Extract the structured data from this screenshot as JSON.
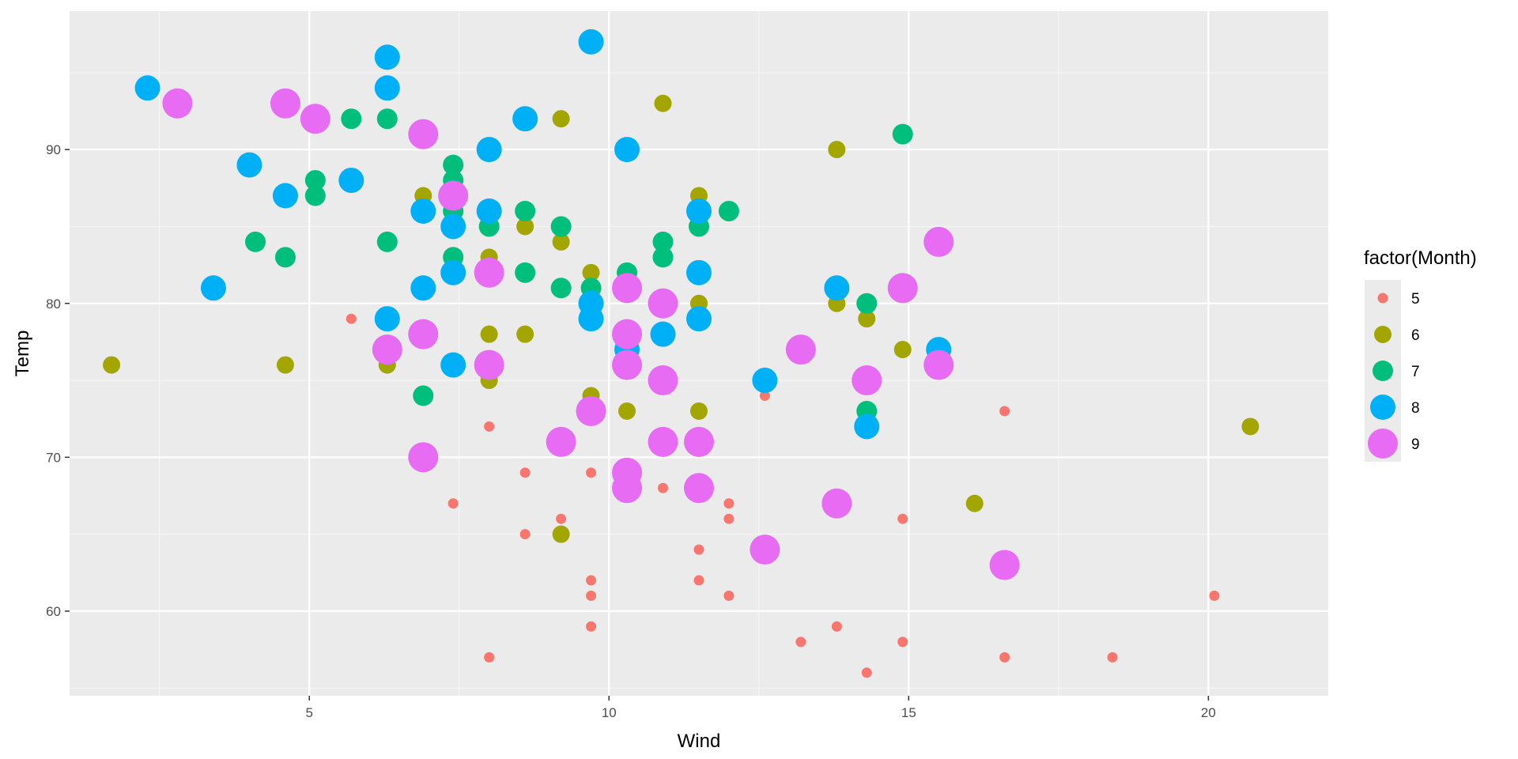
{
  "chart_data": {
    "type": "scatter",
    "xlabel": "Wind",
    "ylabel": "Temp",
    "xlim": [
      1.0,
      22.0
    ],
    "ylim": [
      54.5,
      99.0
    ],
    "x_ticks": [
      5,
      10,
      15,
      20
    ],
    "x_tick_labels": [
      "5",
      "10",
      "15",
      "20"
    ],
    "y_ticks": [
      60,
      70,
      80,
      90
    ],
    "y_tick_labels": [
      "60",
      "70",
      "80",
      "90"
    ],
    "grid": true,
    "legend": {
      "title": "factor(Month)",
      "placement": "right",
      "entries": [
        "5",
        "6",
        "7",
        "8",
        "9"
      ]
    },
    "colors": {
      "5": "#F8766D",
      "6": "#A3A500",
      "7": "#00BF7D",
      "8": "#00B0F6",
      "9": "#E76BF3"
    },
    "size_encoding": "Month",
    "series": [
      {
        "name": "5",
        "points": [
          {
            "x": 5.7,
            "y": 79
          },
          {
            "x": 8.0,
            "y": 72
          },
          {
            "x": 7.4,
            "y": 67
          },
          {
            "x": 8.6,
            "y": 69
          },
          {
            "x": 8.6,
            "y": 65
          },
          {
            "x": 9.2,
            "y": 66
          },
          {
            "x": 9.7,
            "y": 69
          },
          {
            "x": 9.7,
            "y": 62
          },
          {
            "x": 9.7,
            "y": 61
          },
          {
            "x": 9.7,
            "y": 59
          },
          {
            "x": 8.0,
            "y": 57
          },
          {
            "x": 10.9,
            "y": 68
          },
          {
            "x": 11.5,
            "y": 64
          },
          {
            "x": 11.5,
            "y": 62
          },
          {
            "x": 12.0,
            "y": 67
          },
          {
            "x": 12.0,
            "y": 66
          },
          {
            "x": 12.0,
            "y": 61
          },
          {
            "x": 12.6,
            "y": 74
          },
          {
            "x": 13.2,
            "y": 58
          },
          {
            "x": 13.8,
            "y": 59
          },
          {
            "x": 14.3,
            "y": 56
          },
          {
            "x": 14.9,
            "y": 66
          },
          {
            "x": 14.9,
            "y": 58
          },
          {
            "x": 16.6,
            "y": 73
          },
          {
            "x": 16.6,
            "y": 57
          },
          {
            "x": 18.4,
            "y": 57
          },
          {
            "x": 20.1,
            "y": 61
          }
        ]
      },
      {
        "name": "6",
        "points": [
          {
            "x": 1.7,
            "y": 76
          },
          {
            "x": 4.6,
            "y": 76
          },
          {
            "x": 6.3,
            "y": 76
          },
          {
            "x": 6.9,
            "y": 87
          },
          {
            "x": 8.0,
            "y": 83
          },
          {
            "x": 8.0,
            "y": 78
          },
          {
            "x": 8.0,
            "y": 75
          },
          {
            "x": 8.6,
            "y": 85
          },
          {
            "x": 8.6,
            "y": 78
          },
          {
            "x": 9.2,
            "y": 92
          },
          {
            "x": 9.2,
            "y": 84
          },
          {
            "x": 9.2,
            "y": 65
          },
          {
            "x": 9.7,
            "y": 82
          },
          {
            "x": 9.7,
            "y": 74
          },
          {
            "x": 10.3,
            "y": 73
          },
          {
            "x": 10.9,
            "y": 93
          },
          {
            "x": 11.5,
            "y": 87
          },
          {
            "x": 11.5,
            "y": 80
          },
          {
            "x": 11.5,
            "y": 73
          },
          {
            "x": 13.8,
            "y": 90
          },
          {
            "x": 13.8,
            "y": 80
          },
          {
            "x": 14.3,
            "y": 79
          },
          {
            "x": 14.9,
            "y": 77
          },
          {
            "x": 16.1,
            "y": 67
          },
          {
            "x": 20.7,
            "y": 72
          }
        ]
      },
      {
        "name": "7",
        "points": [
          {
            "x": 4.1,
            "y": 84
          },
          {
            "x": 4.6,
            "y": 83
          },
          {
            "x": 5.1,
            "y": 88
          },
          {
            "x": 5.1,
            "y": 87
          },
          {
            "x": 5.7,
            "y": 92
          },
          {
            "x": 6.3,
            "y": 92
          },
          {
            "x": 6.3,
            "y": 84
          },
          {
            "x": 6.9,
            "y": 74
          },
          {
            "x": 7.4,
            "y": 89
          },
          {
            "x": 7.4,
            "y": 88
          },
          {
            "x": 7.4,
            "y": 86
          },
          {
            "x": 7.4,
            "y": 83
          },
          {
            "x": 8.0,
            "y": 85
          },
          {
            "x": 8.6,
            "y": 86
          },
          {
            "x": 8.6,
            "y": 82
          },
          {
            "x": 9.2,
            "y": 85
          },
          {
            "x": 9.2,
            "y": 81
          },
          {
            "x": 9.7,
            "y": 81
          },
          {
            "x": 10.3,
            "y": 82
          },
          {
            "x": 10.9,
            "y": 84
          },
          {
            "x": 10.9,
            "y": 83
          },
          {
            "x": 11.5,
            "y": 85
          },
          {
            "x": 12.0,
            "y": 86
          },
          {
            "x": 14.3,
            "y": 80
          },
          {
            "x": 14.3,
            "y": 73
          },
          {
            "x": 14.9,
            "y": 91
          }
        ]
      },
      {
        "name": "8",
        "points": [
          {
            "x": 2.3,
            "y": 94
          },
          {
            "x": 3.4,
            "y": 81
          },
          {
            "x": 4.0,
            "y": 89
          },
          {
            "x": 4.6,
            "y": 87
          },
          {
            "x": 5.7,
            "y": 88
          },
          {
            "x": 6.3,
            "y": 96
          },
          {
            "x": 6.3,
            "y": 94
          },
          {
            "x": 6.3,
            "y": 79
          },
          {
            "x": 6.9,
            "y": 86
          },
          {
            "x": 6.9,
            "y": 81
          },
          {
            "x": 7.4,
            "y": 85
          },
          {
            "x": 7.4,
            "y": 82
          },
          {
            "x": 7.4,
            "y": 76
          },
          {
            "x": 8.0,
            "y": 90
          },
          {
            "x": 8.0,
            "y": 86
          },
          {
            "x": 8.6,
            "y": 92
          },
          {
            "x": 9.7,
            "y": 97
          },
          {
            "x": 9.7,
            "y": 80
          },
          {
            "x": 9.7,
            "y": 79
          },
          {
            "x": 10.3,
            "y": 90
          },
          {
            "x": 10.3,
            "y": 77
          },
          {
            "x": 10.9,
            "y": 78
          },
          {
            "x": 11.5,
            "y": 86
          },
          {
            "x": 11.5,
            "y": 82
          },
          {
            "x": 11.5,
            "y": 79
          },
          {
            "x": 12.6,
            "y": 75
          },
          {
            "x": 13.8,
            "y": 81
          },
          {
            "x": 14.3,
            "y": 72
          },
          {
            "x": 15.5,
            "y": 77
          }
        ]
      },
      {
        "name": "9",
        "points": [
          {
            "x": 2.8,
            "y": 93
          },
          {
            "x": 4.6,
            "y": 93
          },
          {
            "x": 5.1,
            "y": 92
          },
          {
            "x": 6.3,
            "y": 77
          },
          {
            "x": 6.9,
            "y": 91
          },
          {
            "x": 6.9,
            "y": 78
          },
          {
            "x": 6.9,
            "y": 70
          },
          {
            "x": 7.4,
            "y": 87
          },
          {
            "x": 8.0,
            "y": 82
          },
          {
            "x": 8.0,
            "y": 76
          },
          {
            "x": 9.2,
            "y": 71
          },
          {
            "x": 9.7,
            "y": 73
          },
          {
            "x": 10.3,
            "y": 81
          },
          {
            "x": 10.3,
            "y": 78
          },
          {
            "x": 10.3,
            "y": 76
          },
          {
            "x": 10.3,
            "y": 69
          },
          {
            "x": 10.3,
            "y": 68
          },
          {
            "x": 10.9,
            "y": 80
          },
          {
            "x": 10.9,
            "y": 75
          },
          {
            "x": 10.9,
            "y": 71
          },
          {
            "x": 11.5,
            "y": 71
          },
          {
            "x": 11.5,
            "y": 68
          },
          {
            "x": 12.6,
            "y": 64
          },
          {
            "x": 13.2,
            "y": 77
          },
          {
            "x": 13.8,
            "y": 67
          },
          {
            "x": 14.3,
            "y": 75
          },
          {
            "x": 14.9,
            "y": 81
          },
          {
            "x": 15.5,
            "y": 84
          },
          {
            "x": 15.5,
            "y": 76
          },
          {
            "x": 16.6,
            "y": 63
          }
        ]
      }
    ]
  }
}
